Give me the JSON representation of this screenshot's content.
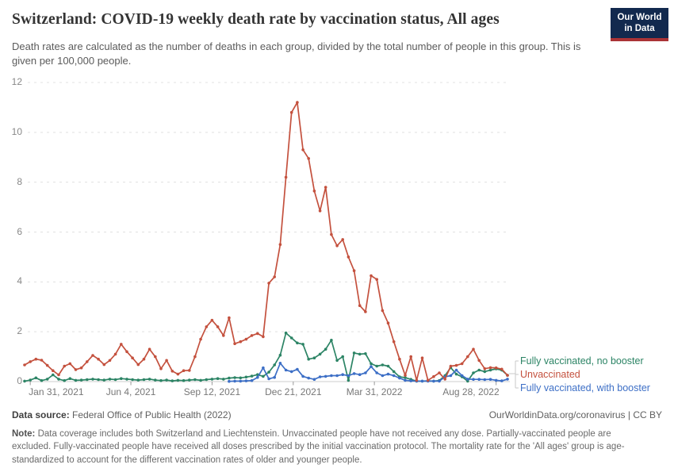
{
  "header": {
    "title": "Switzerland: COVID-19 weekly death rate by vaccination status, All ages",
    "subtitle": "Death rates are calculated as the number of deaths in each group, divided by the total number of people in this group. This is given per 100,000 people.",
    "logo": {
      "line1": "Our World",
      "line2": "in Data"
    }
  },
  "chart_data": {
    "type": "line",
    "title": "Switzerland: COVID-19 weekly death rate by vaccination status, All ages",
    "subtitle": "Death rates are calculated as the number of deaths in each group, divided by the total number of people in this group. This is given per 100,000 people.",
    "ylim": [
      0,
      12
    ],
    "y_ticks": [
      0,
      2,
      4,
      6,
      8,
      10,
      12
    ],
    "grid": "dashed-horizontal",
    "legend_position": "right-of-line-ends",
    "x_ticks": [
      {
        "label": "Jan 31, 2021",
        "week": 1,
        "align": "start"
      },
      {
        "label": "Jun 4, 2021",
        "week": 18.71,
        "align": "middle"
      },
      {
        "label": "Sep 12, 2021",
        "week": 33,
        "align": "middle"
      },
      {
        "label": "Dec 21, 2021",
        "week": 47.29,
        "align": "middle"
      },
      {
        "label": "Mar 31, 2022",
        "week": 61.57,
        "align": "middle"
      },
      {
        "label": "Aug 28, 2022",
        "week": 83,
        "align": "end"
      }
    ],
    "dates": [
      "2021-01-24",
      "2021-01-31",
      "2021-02-07",
      "2021-02-14",
      "2021-02-21",
      "2021-02-28",
      "2021-03-07",
      "2021-03-14",
      "2021-03-21",
      "2021-03-28",
      "2021-04-04",
      "2021-04-11",
      "2021-04-18",
      "2021-04-25",
      "2021-05-02",
      "2021-05-09",
      "2021-05-16",
      "2021-05-23",
      "2021-05-30",
      "2021-06-06",
      "2021-06-13",
      "2021-06-20",
      "2021-06-27",
      "2021-07-04",
      "2021-07-11",
      "2021-07-18",
      "2021-07-25",
      "2021-08-01",
      "2021-08-08",
      "2021-08-15",
      "2021-08-22",
      "2021-08-29",
      "2021-09-05",
      "2021-09-12",
      "2021-09-19",
      "2021-09-26",
      "2021-10-03",
      "2021-10-10",
      "2021-10-17",
      "2021-10-24",
      "2021-10-31",
      "2021-11-07",
      "2021-11-14",
      "2021-11-21",
      "2021-11-28",
      "2021-12-05",
      "2021-12-12",
      "2021-12-19",
      "2021-12-26",
      "2022-01-02",
      "2022-01-09",
      "2022-01-16",
      "2022-01-23",
      "2022-01-30",
      "2022-02-06",
      "2022-02-13",
      "2022-02-20",
      "2022-02-27",
      "2022-03-06",
      "2022-03-13",
      "2022-03-20",
      "2022-03-27",
      "2022-04-03",
      "2022-04-10",
      "2022-04-17",
      "2022-04-24",
      "2022-05-01",
      "2022-05-08",
      "2022-05-15",
      "2022-05-22",
      "2022-05-29",
      "2022-06-05",
      "2022-06-12",
      "2022-06-19",
      "2022-06-26",
      "2022-07-03",
      "2022-07-10",
      "2022-07-17",
      "2022-07-24",
      "2022-07-31",
      "2022-08-07",
      "2022-08-14",
      "2022-08-21",
      "2022-08-28",
      "2022-09-04",
      "2022-09-11"
    ],
    "series": [
      {
        "name": "Fully vaccinated, no booster",
        "color": "#2c8465",
        "values": [
          0.02,
          0.06,
          0.15,
          0.04,
          0.1,
          0.27,
          0.1,
          0.04,
          0.12,
          0.05,
          0.06,
          0.08,
          0.1,
          0.08,
          0.06,
          0.1,
          0.08,
          0.12,
          0.1,
          0.08,
          0.06,
          0.08,
          0.1,
          0.06,
          0.04,
          0.06,
          0.03,
          0.05,
          0.04,
          0.06,
          0.08,
          0.05,
          0.08,
          0.1,
          0.12,
          0.1,
          0.14,
          0.16,
          0.15,
          0.18,
          0.22,
          0.28,
          0.21,
          0.38,
          0.67,
          1.06,
          1.95,
          1.75,
          1.55,
          1.5,
          0.9,
          0.95,
          1.1,
          1.3,
          1.66,
          0.85,
          1.0,
          0.05,
          1.15,
          1.1,
          1.12,
          0.72,
          0.62,
          0.67,
          0.62,
          0.4,
          0.19,
          0.16,
          0.09,
          0.02,
          0.02,
          0.03,
          0.02,
          0.04,
          0.24,
          0.56,
          0.3,
          0.19,
          0.02,
          0.35,
          0.46,
          0.4,
          0.46,
          0.51,
          0.46,
          0.25
        ]
      },
      {
        "name": "Fully vaccinated, with booster",
        "color": "#3d6fc6",
        "values": [
          null,
          null,
          null,
          null,
          null,
          null,
          null,
          null,
          null,
          null,
          null,
          null,
          null,
          null,
          null,
          null,
          null,
          null,
          null,
          null,
          null,
          null,
          null,
          null,
          null,
          null,
          null,
          null,
          null,
          null,
          null,
          null,
          null,
          null,
          null,
          null,
          0.01,
          0.02,
          0.02,
          0.03,
          0.04,
          0.17,
          0.55,
          0.11,
          0.17,
          0.74,
          0.46,
          0.4,
          0.49,
          0.21,
          0.14,
          0.09,
          0.19,
          0.21,
          0.24,
          0.24,
          0.28,
          0.24,
          0.32,
          0.28,
          0.35,
          0.6,
          0.35,
          0.24,
          0.3,
          0.24,
          0.14,
          0.05,
          0.03,
          0.02,
          0.02,
          0.02,
          0.02,
          0.02,
          0.19,
          0.24,
          0.46,
          0.24,
          0.1,
          0.09,
          0.09,
          0.08,
          0.09,
          0.05,
          0.03,
          0.1
        ]
      },
      {
        "name": "Unvaccinated",
        "color": "#c4513e",
        "values": [
          0.67,
          0.8,
          0.9,
          0.86,
          0.65,
          0.44,
          0.27,
          0.62,
          0.72,
          0.48,
          0.55,
          0.8,
          1.05,
          0.9,
          0.68,
          0.85,
          1.1,
          1.5,
          1.2,
          0.95,
          0.68,
          0.9,
          1.3,
          1.0,
          0.52,
          0.85,
          0.42,
          0.3,
          0.44,
          0.45,
          1.0,
          1.7,
          2.2,
          2.46,
          2.2,
          1.85,
          2.56,
          1.52,
          1.6,
          1.7,
          1.85,
          1.93,
          1.8,
          3.95,
          4.2,
          5.5,
          8.2,
          10.8,
          11.2,
          9.3,
          8.95,
          7.65,
          6.85,
          7.8,
          5.9,
          5.45,
          5.7,
          5.0,
          4.45,
          3.05,
          2.8,
          4.25,
          4.1,
          2.85,
          2.35,
          1.6,
          0.9,
          0.25,
          1.0,
          0.05,
          0.95,
          0.05,
          0.2,
          0.35,
          0.1,
          0.62,
          0.65,
          0.72,
          1.0,
          1.3,
          0.85,
          0.52,
          0.56,
          0.55,
          0.5,
          0.25
        ]
      }
    ],
    "legend": [
      {
        "label": "Fully vaccinated, no booster",
        "color": "#2c8465"
      },
      {
        "label": "Unvaccinated",
        "color": "#c4513e"
      },
      {
        "label": "Fully vaccinated, with booster",
        "color": "#3d6fc6"
      }
    ]
  },
  "style_colors": {
    "gridline": "#e0e0e0",
    "axis_line": "#cccccc",
    "tick_mark": "#999999",
    "bracket": "#c9c9c9"
  },
  "footer": {
    "source_label": "Data source:",
    "source_value": " Federal Office of Public Health (2022)",
    "credit": "OurWorldinData.org/coronavirus | CC BY",
    "note_label": "Note:",
    "note_text": " Data coverage includes both Switzerland and Liechtenstein. Unvaccinated people have not received any dose. Partially-vaccinated people are excluded. Fully-vaccinated people have received all doses prescribed by the initial vaccination protocol. The mortality rate for the 'All ages' group is age-standardized to account for the different vaccination rates of older and younger people."
  }
}
